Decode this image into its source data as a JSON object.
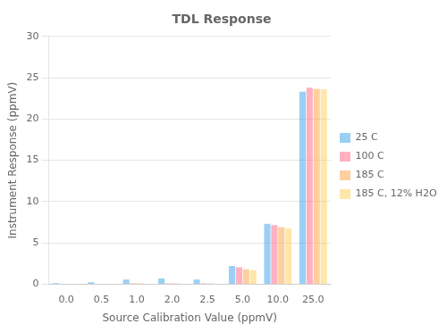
{
  "chart_data": {
    "type": "bar",
    "title": "TDL Response",
    "xlabel": "Source Calibration Value (ppmV)",
    "ylabel": "Instrument Response (ppmV)",
    "categories": [
      "0.0",
      "0.5",
      "1.0",
      "2.0",
      "2.5",
      "5.0",
      "10.0",
      "25.0"
    ],
    "series": [
      {
        "name": "25 C",
        "values": [
          0.12,
          0.22,
          0.55,
          0.7,
          0.55,
          2.2,
          7.3,
          23.3
        ]
      },
      {
        "name": "100 C",
        "values": [
          0.05,
          0.05,
          0.1,
          0.1,
          0.1,
          2.05,
          7.15,
          23.8
        ]
      },
      {
        "name": "185 C",
        "values": [
          0.05,
          0.05,
          0.1,
          0.1,
          0.1,
          1.8,
          6.9,
          23.65
        ]
      },
      {
        "name": "185 C, 12% H2O",
        "values": [
          0.05,
          0.05,
          0.05,
          0.05,
          0.05,
          1.7,
          6.75,
          23.6
        ]
      }
    ],
    "ylim": [
      0,
      30
    ],
    "yticks": [
      0,
      5,
      10,
      15,
      20,
      25,
      30
    ],
    "grid": true,
    "legend": "right"
  }
}
